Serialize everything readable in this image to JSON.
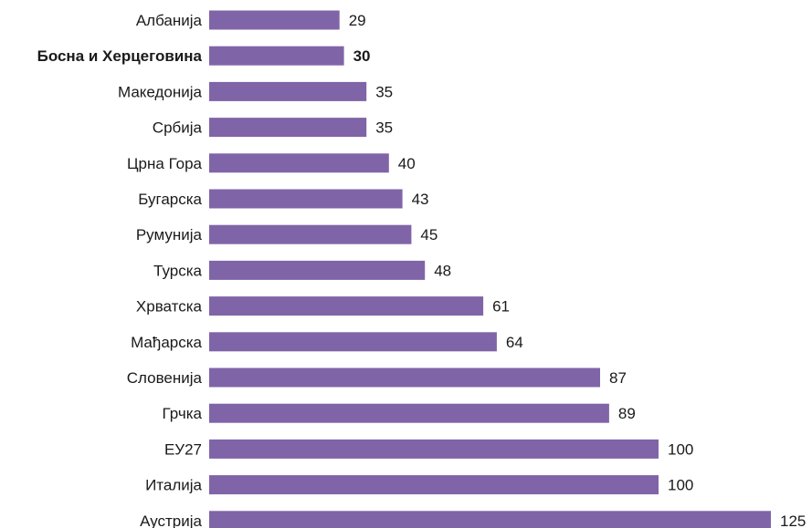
{
  "chart_data": {
    "type": "bar",
    "orientation": "horizontal",
    "categories": [
      "Албанија",
      "Босна и Херцеговина",
      "Македонија",
      "Србија",
      "Црна Гора",
      "Бугарска",
      "Румунија",
      "Турска",
      "Хрватска",
      "Мађарска",
      "Словенија",
      "Грчка",
      "ЕУ27",
      "Италија",
      "Аустрија"
    ],
    "values": [
      29,
      30,
      35,
      35,
      40,
      43,
      45,
      48,
      61,
      64,
      87,
      89,
      100,
      100,
      125
    ],
    "highlight_category": "Босна и Херцеговина",
    "bar_color": "#8064a8",
    "xlim": [
      0,
      125
    ],
    "grid": false,
    "title": "",
    "xlabel": "",
    "ylabel": ""
  }
}
